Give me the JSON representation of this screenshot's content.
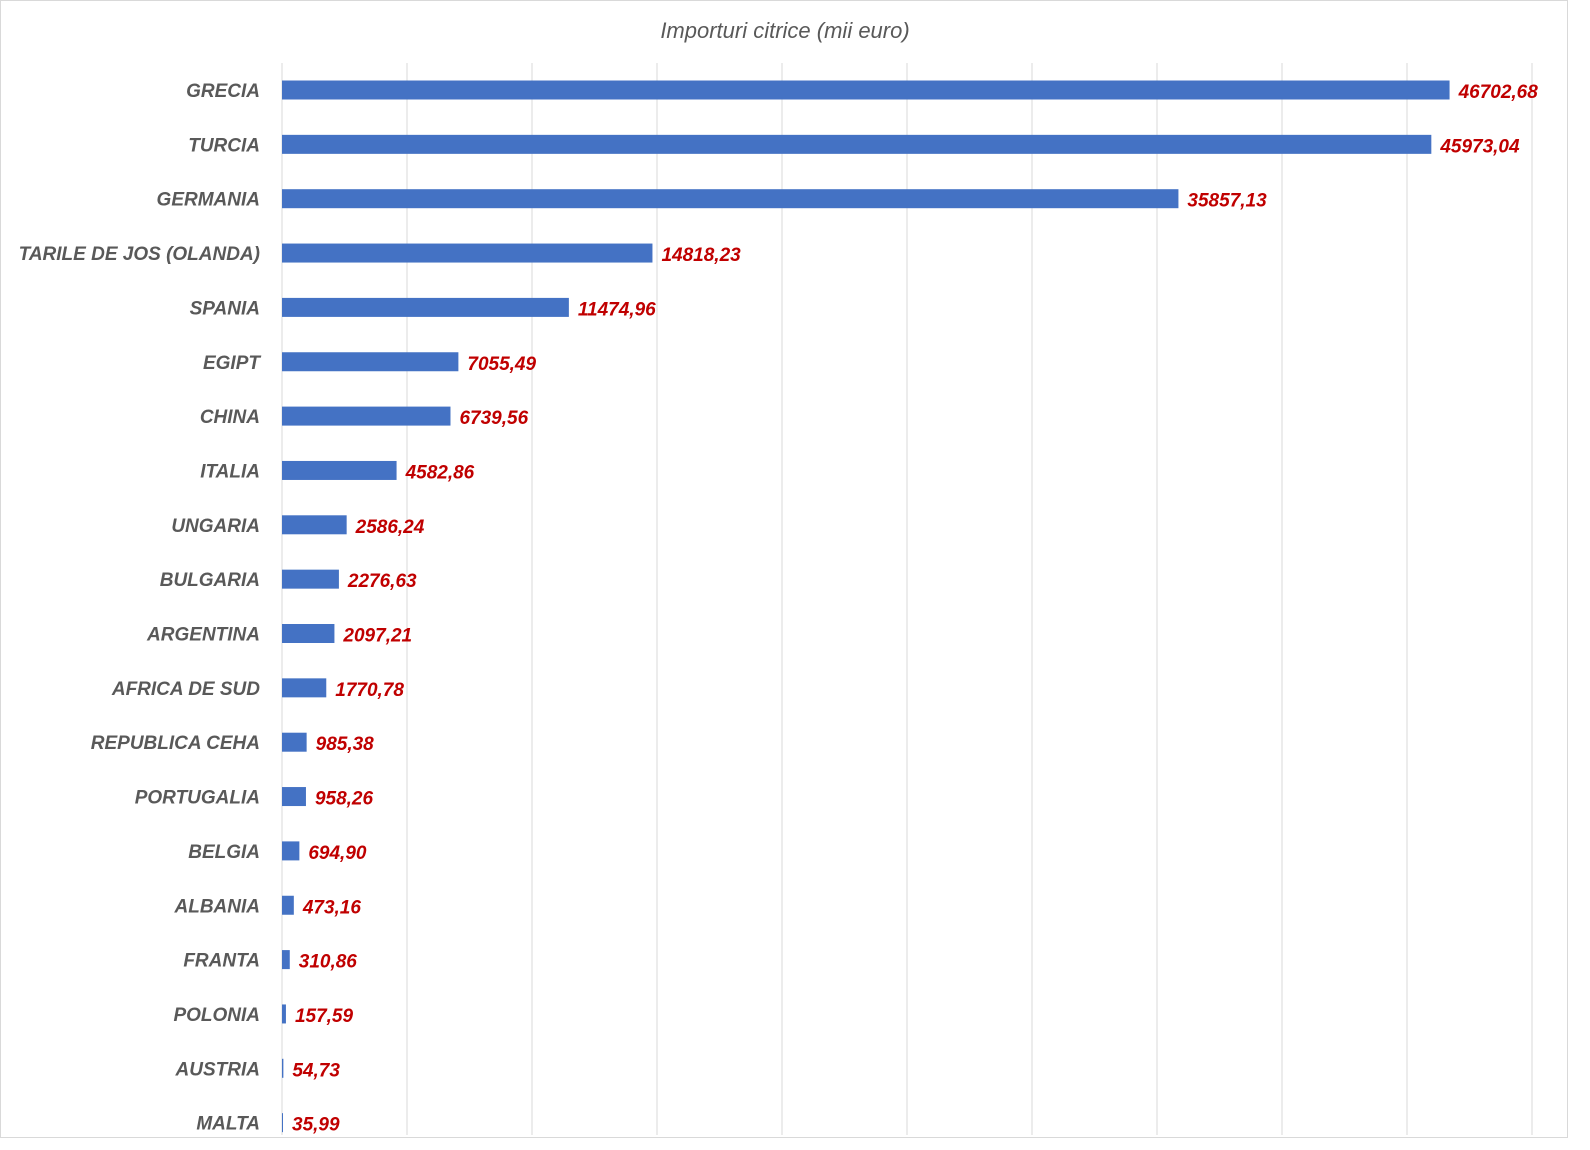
{
  "chart_data": {
    "type": "bar",
    "orientation": "horizontal",
    "title": "Importuri citrice (mii euro)",
    "xlabel": "",
    "ylabel": "",
    "xlim": [
      0,
      50000
    ],
    "grid": true,
    "legend": "none",
    "bar_color": "#4472C4",
    "label_color": "#C00000",
    "categories": [
      "GRECIA",
      "TURCIA",
      "GERMANIA",
      "TARILE DE JOS (OLANDA)",
      "SPANIA",
      "EGIPT",
      "CHINA",
      "ITALIA",
      "UNGARIA",
      "BULGARIA",
      "ARGENTINA",
      "AFRICA DE SUD",
      "REPUBLICA CEHA",
      "PORTUGALIA",
      "BELGIA",
      "ALBANIA",
      "FRANTA",
      "POLONIA",
      "AUSTRIA",
      "MALTA"
    ],
    "values": [
      46702.68,
      45973.04,
      35857.13,
      14818.23,
      11474.96,
      7055.49,
      6739.56,
      4582.86,
      2586.24,
      2276.63,
      2097.21,
      1770.78,
      985.38,
      958.26,
      694.9,
      473.16,
      310.86,
      157.59,
      54.73,
      35.99
    ],
    "data_labels": [
      "46702,68",
      "45973,04",
      "35857,13",
      "14818,23",
      "11474,96",
      "7055,49",
      "6739,56",
      "4582,86",
      "2586,24",
      "2276,63",
      "2097,21",
      "1770,78",
      "985,38",
      "958,26",
      "694,90",
      "473,16",
      "310,86",
      "157,59",
      "54,73",
      "35,99"
    ]
  }
}
